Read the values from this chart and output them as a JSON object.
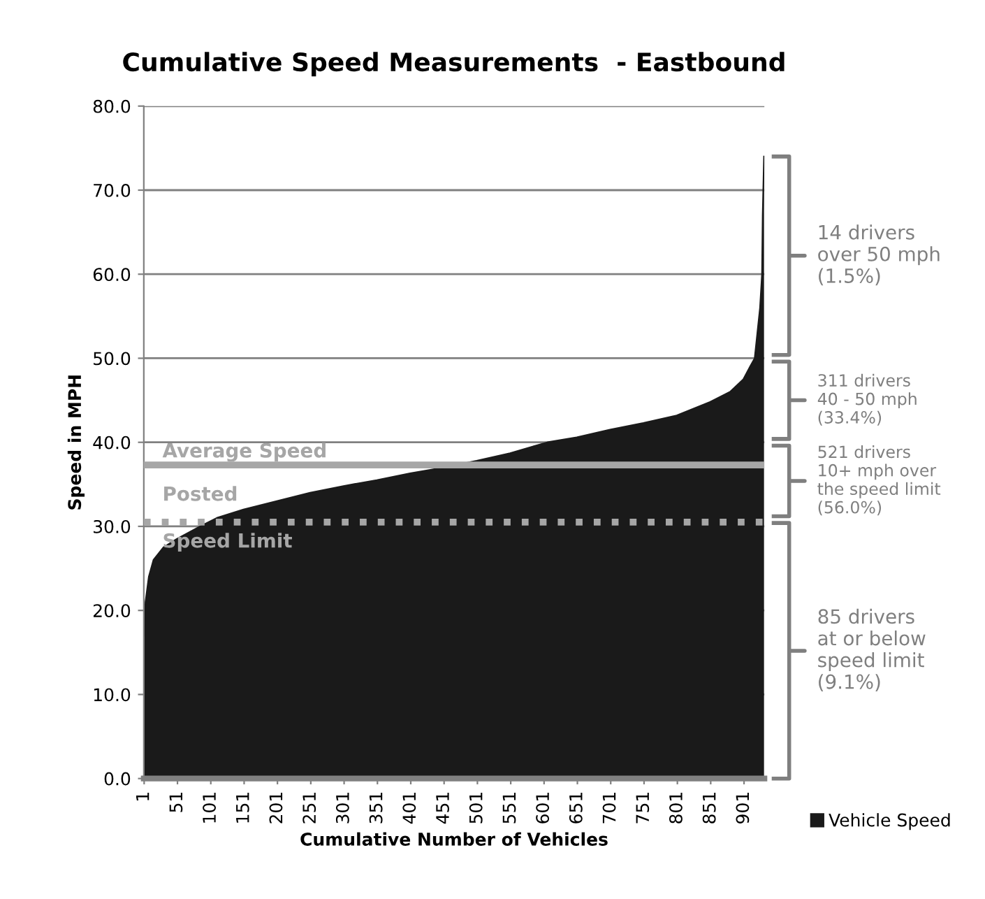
{
  "chart_data": {
    "type": "area",
    "title": "Cumulative Speed Measurements  - Eastbound",
    "xlabel": "Cumulative Number of Vehicles",
    "ylabel": "Speed in MPH",
    "x": [
      1,
      3,
      8,
      15,
      30,
      50,
      85,
      110,
      150,
      200,
      250,
      300,
      350,
      400,
      450,
      500,
      550,
      606,
      650,
      700,
      750,
      800,
      850,
      880,
      900,
      910,
      917,
      921,
      925,
      928,
      929,
      931
    ],
    "series": [
      {
        "name": "Vehicle Speed",
        "color": "#1a1a1a",
        "values": [
          17,
          21,
          24,
          26,
          27.5,
          28.5,
          30,
          31,
          32,
          33,
          34,
          34.8,
          35.5,
          36.3,
          37,
          37.8,
          38.7,
          40,
          40.6,
          41.5,
          42.3,
          43.2,
          44.8,
          46,
          47.5,
          49,
          50,
          53,
          56,
          60,
          67,
          74
        ]
      }
    ],
    "xlim": [
      0.5,
      931.5
    ],
    "xticks": [
      1,
      51,
      101,
      151,
      201,
      251,
      301,
      351,
      401,
      451,
      501,
      551,
      601,
      651,
      701,
      751,
      801,
      851,
      901
    ],
    "ylim": [
      0,
      80
    ],
    "yticks": [
      {
        "value": 0,
        "label": "0.0"
      },
      {
        "value": 10,
        "label": "10.0"
      },
      {
        "value": 20,
        "label": "20.0"
      },
      {
        "value": 30,
        "label": "30.0"
      },
      {
        "value": 40,
        "label": "40.0"
      },
      {
        "value": 50,
        "label": "50.0"
      },
      {
        "value": 60,
        "label": "60.0"
      },
      {
        "value": 70,
        "label": "70.0"
      },
      {
        "value": 80,
        "label": "80.0"
      }
    ],
    "grid": "y",
    "legend": "right",
    "ref_lines": [
      {
        "axis": "y",
        "value": 37.3,
        "label": "Average Speed",
        "color": "#a6a6a6",
        "line_style": "solid"
      },
      {
        "axis": "y",
        "value": 30.5,
        "label": "Posted\nSpeed Limit",
        "color": "#a6a6a6",
        "line_style": "dotted"
      }
    ],
    "annotations": [
      "14 drivers\nover 50 mph\n(1.5%)",
      "311 drivers\n40 - 50 mph\n(33.4%)",
      "521 drivers\n10+ mph over\nthe speed limit\n(56.0%)",
      "85 drivers\nat or below\nspeed limit\n(9.1%)"
    ]
  }
}
